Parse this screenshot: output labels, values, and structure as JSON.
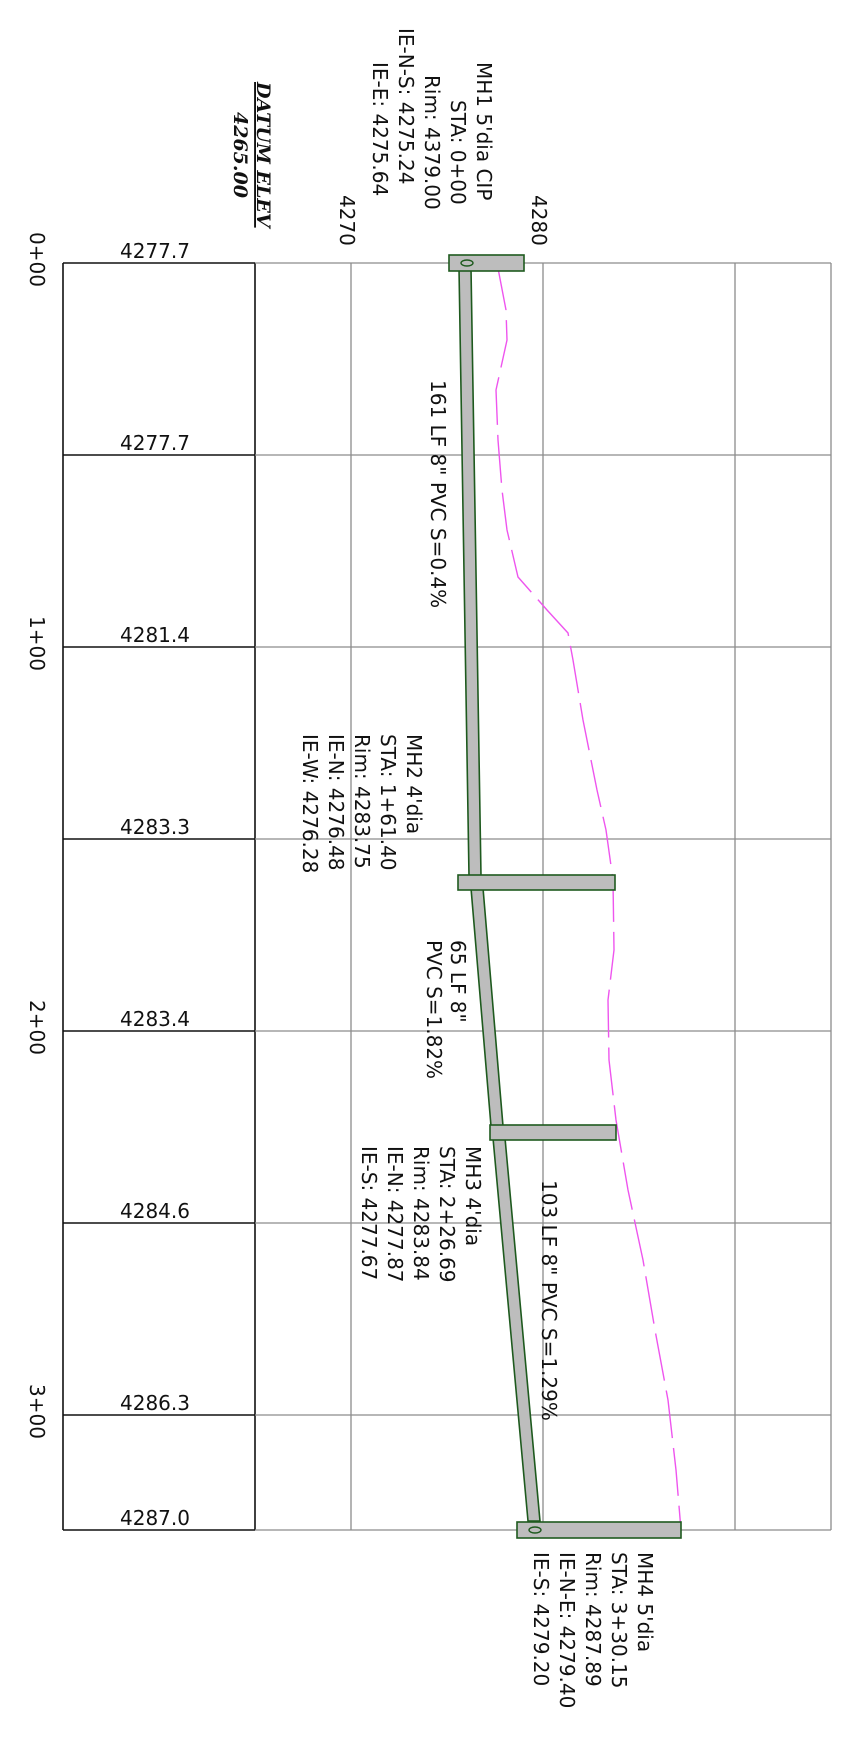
{
  "profile": {
    "datum_label": "DATUM ELEV",
    "datum_value": "4265.00",
    "elev_tick_4270": "4270",
    "elev_tick_4280": "4280"
  },
  "stations": [
    {
      "label": "0+00"
    },
    {
      "label": "1+00"
    },
    {
      "label": "2+00"
    },
    {
      "label": "3+00"
    }
  ],
  "ground_elevations": [
    "4277.7",
    "4277.7",
    "4281.4",
    "4283.3",
    "4283.4",
    "4284.6",
    "4286.3",
    "4287.0"
  ],
  "manholes": [
    {
      "lines": [
        "MH1  5'dia  CIP",
        "STA:  0+00",
        "Rim:  4379.00",
        "IE-N-S:  4275.24",
        "IE-E:  4275.64"
      ]
    },
    {
      "lines": [
        "MH2  4'dia",
        "STA:  1+61.40",
        "Rim:  4283.75",
        "IE-N:  4276.48",
        "IE-W:  4276.28"
      ]
    },
    {
      "lines": [
        "MH3  4'dia",
        "STA:  2+26.69",
        "Rim:  4283.84",
        "IE-N:  4277.87",
        "IE-S:  4277.67"
      ]
    },
    {
      "lines": [
        "MH4  5'dia",
        "STA:  3+30.15",
        "Rim:  4287.89",
        "IE-N-E:  4279.40",
        "IE-S:  4279.20"
      ]
    }
  ],
  "pipes": [
    {
      "label": "161  LF  8\"  PVC  S=0.4%"
    },
    {
      "line1": "65  LF  8\"",
      "line2": "PVC  S=1.82%"
    },
    {
      "label": "103  LF  8\"  PVC  S=1.29%"
    }
  ],
  "colors": {
    "pipe_fill": "#bdbdbd",
    "pipe_stroke": "#1e5a1e",
    "ground_line": "#ee55ee",
    "grid": "#8c8c8c"
  }
}
